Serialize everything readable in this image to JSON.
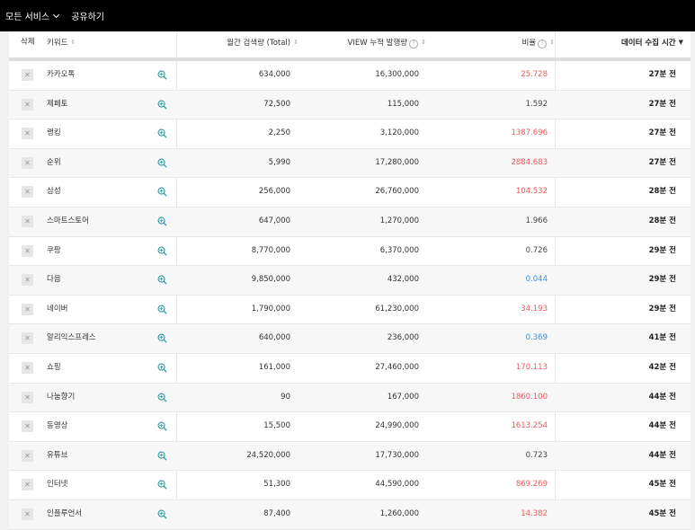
{
  "topbar": {
    "menu_label": "모든 서비스",
    "share_label": "공유하기"
  },
  "table": {
    "headers": {
      "delete": "삭제",
      "keyword": "키워드",
      "monthly": "월간 검색량 (Total)",
      "view": "VIEW 누적 발행량",
      "ratio": "비율",
      "time": "데이터 수집 시간"
    },
    "sort_icon": "⇕",
    "sort_active_icon": "▼",
    "help_icon": "?",
    "delete_icon": "✕",
    "rows": [
      {
        "keyword": "카카오톡",
        "monthly": "634,000",
        "view": "16,300,000",
        "ratio": "25.728",
        "ratio_color": "red",
        "time": "27분 전"
      },
      {
        "keyword": "제페토",
        "monthly": "72,500",
        "view": "115,000",
        "ratio": "1.592",
        "ratio_color": "black",
        "time": "27분 전"
      },
      {
        "keyword": "랭킹",
        "monthly": "2,250",
        "view": "3,120,000",
        "ratio": "1387.696",
        "ratio_color": "red",
        "time": "27분 전"
      },
      {
        "keyword": "순위",
        "monthly": "5,990",
        "view": "17,280,000",
        "ratio": "2884.683",
        "ratio_color": "red",
        "time": "27분 전"
      },
      {
        "keyword": "삼성",
        "monthly": "256,000",
        "view": "26,760,000",
        "ratio": "104.532",
        "ratio_color": "red",
        "time": "28분 전"
      },
      {
        "keyword": "스마트스토어",
        "monthly": "647,000",
        "view": "1,270,000",
        "ratio": "1.966",
        "ratio_color": "black",
        "time": "28분 전"
      },
      {
        "keyword": "쿠팡",
        "monthly": "8,770,000",
        "view": "6,370,000",
        "ratio": "0.726",
        "ratio_color": "black",
        "time": "29분 전"
      },
      {
        "keyword": "다음",
        "monthly": "9,850,000",
        "view": "432,000",
        "ratio": "0.044",
        "ratio_color": "blue",
        "time": "29분 전"
      },
      {
        "keyword": "네이버",
        "monthly": "1,790,000",
        "view": "61,230,000",
        "ratio": "34.193",
        "ratio_color": "red",
        "time": "29분 전"
      },
      {
        "keyword": "알리익스프레스",
        "monthly": "640,000",
        "view": "236,000",
        "ratio": "0.369",
        "ratio_color": "blue",
        "time": "41분 전"
      },
      {
        "keyword": "쇼핑",
        "monthly": "161,000",
        "view": "27,460,000",
        "ratio": "170.113",
        "ratio_color": "red",
        "time": "42분 전"
      },
      {
        "keyword": "나눔향기",
        "monthly": "90",
        "view": "167,000",
        "ratio": "1860.100",
        "ratio_color": "red",
        "time": "44분 전"
      },
      {
        "keyword": "동영상",
        "monthly": "15,500",
        "view": "24,990,000",
        "ratio": "1613.254",
        "ratio_color": "red",
        "time": "44분 전"
      },
      {
        "keyword": "유튜브",
        "monthly": "24,520,000",
        "view": "17,730,000",
        "ratio": "0.723",
        "ratio_color": "black",
        "time": "44분 전"
      },
      {
        "keyword": "인터넷",
        "monthly": "51,300",
        "view": "44,590,000",
        "ratio": "869.269",
        "ratio_color": "red",
        "time": "45분 전"
      },
      {
        "keyword": "인플루언서",
        "monthly": "87,400",
        "view": "1,260,000",
        "ratio": "14.382",
        "ratio_color": "red",
        "time": "45분 전"
      }
    ]
  },
  "colors": {
    "red": "#ef5a5a",
    "blue": "#3a8ee6",
    "zoom_icon": "#3aa0a8"
  }
}
